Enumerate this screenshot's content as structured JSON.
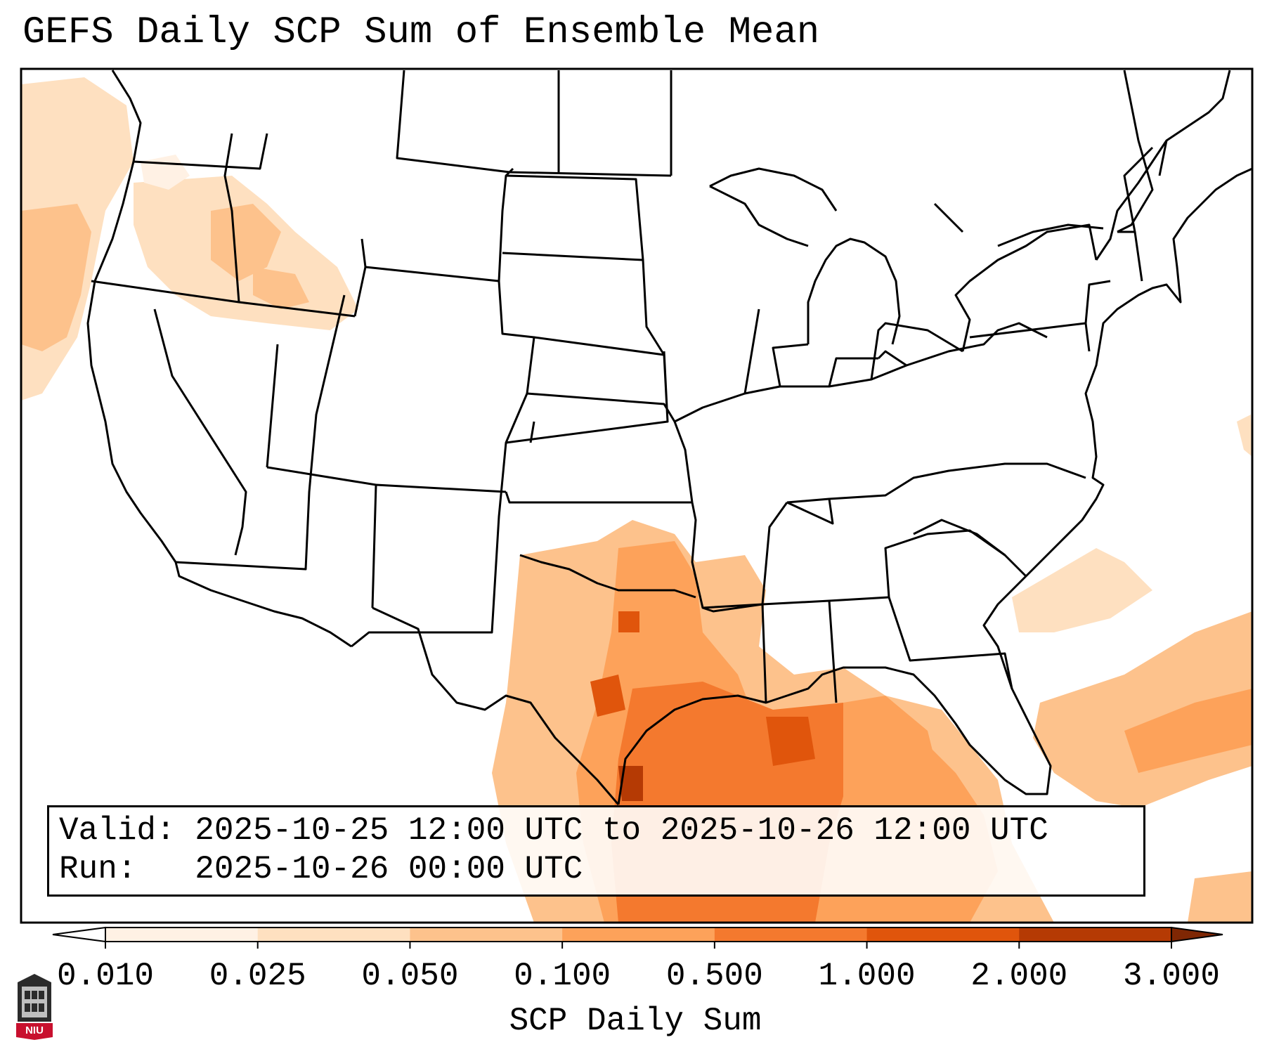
{
  "title": "GEFS Daily SCP Sum of Ensemble Mean",
  "info": {
    "valid_label": "Valid:",
    "valid_value": "2025-10-25 12:00 UTC to 2025-10-26 12:00 UTC",
    "run_label": "Run:",
    "run_value": "2025-10-26 00:00 UTC"
  },
  "colorbar": {
    "label": "SCP Daily Sum",
    "ticks": [
      "0.010",
      "0.025",
      "0.050",
      "0.100",
      "0.500",
      "1.000",
      "2.000",
      "3.000"
    ],
    "colors": [
      "#fff1e4",
      "#fee0c0",
      "#fdc28c",
      "#fda25a",
      "#f4792e",
      "#e0550c",
      "#b53a04",
      "#7f2704"
    ]
  },
  "logo": {
    "text": "NIU"
  }
}
